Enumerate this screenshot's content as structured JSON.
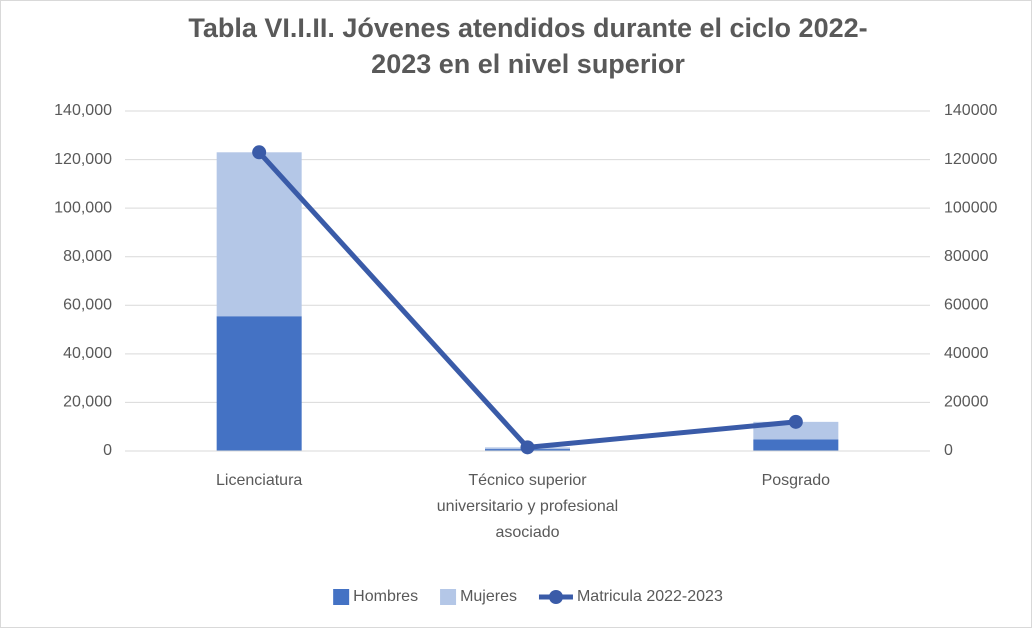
{
  "chart_data": {
    "type": "bar",
    "stacked": true,
    "title": [
      "Tabla VI.I.II. Jóvenes atendidos durante el ciclo 2022-",
      "2023 en el nivel superior"
    ],
    "categories": [
      "Licenciatura",
      "Técnico superior universitario y profesional asociado",
      "Posgrado"
    ],
    "series": [
      {
        "name": "Hombres",
        "type": "bar",
        "color": "#4472c4",
        "values": [
          55500,
          800,
          4800
        ]
      },
      {
        "name": "Mujeres",
        "type": "bar",
        "color": "#b4c7e7",
        "values": [
          67500,
          700,
          7200
        ]
      },
      {
        "name": "Matricula 2022-2023",
        "type": "line",
        "axis": "y2",
        "color": "#3a5ba8",
        "values": [
          123000,
          1500,
          12000
        ]
      }
    ],
    "ylim": [
      0,
      140000
    ],
    "yticks": [
      0,
      {
        "value": 20000,
        "label": "20,000"
      },
      {
        "value": 40000,
        "label": "40,000"
      },
      {
        "value": 60000,
        "label": "60,000"
      },
      {
        "value": 80000,
        "label": "80,000"
      },
      {
        "value": 100000,
        "label": "100,000"
      },
      {
        "value": 120000,
        "label": "120,000"
      },
      {
        "value": 140000,
        "label": "140,000"
      }
    ],
    "y2lim": [
      0,
      140000
    ],
    "y2ticks": [
      0,
      20000,
      40000,
      60000,
      80000,
      100000,
      120000,
      140000
    ],
    "grid": true,
    "legend": "bottom"
  }
}
